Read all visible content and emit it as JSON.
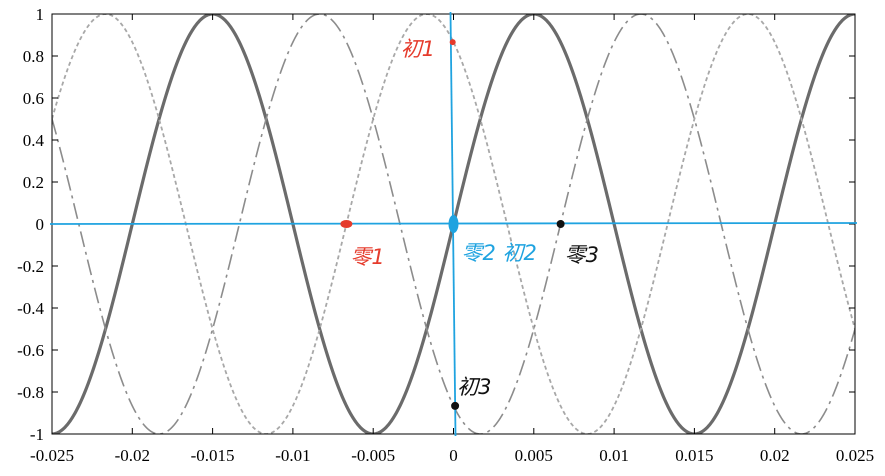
{
  "chart_data": {
    "type": "line",
    "xlim": [
      -0.025,
      0.025
    ],
    "ylim": [
      -1,
      1
    ],
    "x_ticks": [
      "-0.025",
      "-0.02",
      "-0.015",
      "-0.01",
      "-0.005",
      "0",
      "0.005",
      "0.01",
      "0.015",
      "0.02",
      "0.025"
    ],
    "y_ticks": [
      "1",
      "0.8",
      "0.6",
      "0.4",
      "0.2",
      "0",
      "-0.2",
      "-0.4",
      "-0.6",
      "-0.8",
      "-1"
    ],
    "grid": false,
    "frequency_hz": 50,
    "series": [
      {
        "style": "solid",
        "color": "#6b6b6b",
        "function": "sin(2*pi*50*x)"
      },
      {
        "style": "dashdot",
        "color": "#8c8c8c",
        "function": "sin(2*pi*50*x - 2*pi/3)"
      },
      {
        "style": "dotted",
        "color": "#a8a8a8",
        "function": "sin(2*pi*50*x + 2*pi/3)"
      }
    ],
    "annotations": [
      {
        "text": "初1",
        "x": -5e-05,
        "y": 0.866,
        "color": "#e53b2c"
      },
      {
        "text": "零1",
        "x": -0.00667,
        "y": 0,
        "color": "#e53b2c"
      },
      {
        "text": "零2 初2",
        "x": 0,
        "y": 0,
        "color": "#1fa3e0"
      },
      {
        "text": "零3",
        "x": 0.00667,
        "y": 0,
        "color": "#111111"
      },
      {
        "text": "初3",
        "x": 0.0001,
        "y": -0.866,
        "color": "#111111"
      }
    ],
    "hand_axes_color": "#1fa3e0"
  }
}
